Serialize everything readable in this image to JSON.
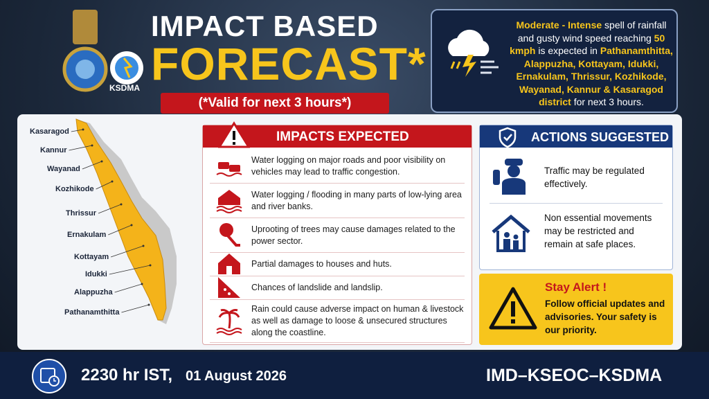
{
  "header": {
    "title_line1": "IMPACT BASED",
    "title_line2": "FORECAST*",
    "validity": "(*Valid for next 3 hours*)",
    "logo_label": "KSDMA"
  },
  "alert": {
    "segments": [
      {
        "text": "Moderate - Intense",
        "highlight": true
      },
      {
        "text": " spell of rainfall and gusty wind speed reaching ",
        "highlight": false
      },
      {
        "text": "50 kmph",
        "highlight": true
      },
      {
        "text": " is expected in ",
        "highlight": false
      },
      {
        "text": "Pathanamthitta, Alappuzha, Kottayam, Idukki, Ernakulam, Thrissur, Kozhikode, Wayanad, Kannur & Kasaragod district",
        "highlight": true
      },
      {
        "text": " for next 3 hours.",
        "highlight": false
      }
    ]
  },
  "map": {
    "districts": [
      "Kasaragod",
      "Kannur",
      "Wayanad",
      "Kozhikode",
      "Thrissur",
      "Ernakulam",
      "Kottayam",
      "Idukki",
      "Alappuzha",
      "Pathanamthitta"
    ]
  },
  "impacts": {
    "title": "IMPACTS EXPECTED",
    "items": [
      "Water logging on major roads and poor visibility on vehicles may lead to traffic congestion.",
      "Water logging / flooding in many parts of low-lying area and river banks.",
      "Uprooting of trees may cause damages related to the power sector.",
      "Partial damages to houses and huts.",
      "Chances of landslide and landslip.",
      "Rain could cause adverse impact on human & livestock as well as damage to loose & unsecured structures along the coastline."
    ]
  },
  "actions": {
    "title": "ACTIONS SUGGESTED",
    "items": [
      "Traffic may be regulated effectively.",
      "Non essential movements may be restricted and remain at safe places."
    ]
  },
  "stay_alert": {
    "title": "Stay Alert !",
    "text": "Follow official updates and advisories. Your safety is our priority."
  },
  "footer": {
    "time": "2230 hr IST,",
    "date": "01 August 2026",
    "source": "IMD–KSEOC–KSDMA"
  }
}
